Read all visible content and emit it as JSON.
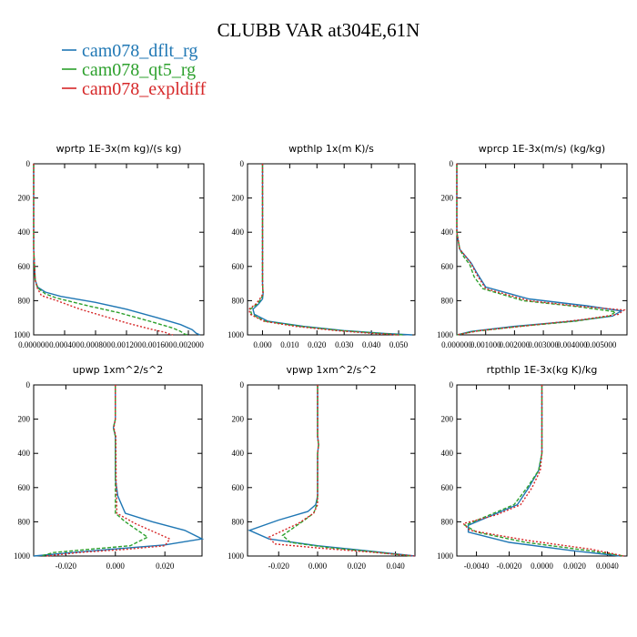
{
  "figure_title": "CLUBB VAR at304E,61N",
  "legend": [
    {
      "label": "cam078_dflt_rg",
      "color": "#1f77b4",
      "dash": "solid"
    },
    {
      "label": "cam078_qt5_rg",
      "color": "#2ca02c",
      "dash": "dashed"
    },
    {
      "label": "cam078_expldiff",
      "color": "#d62728",
      "dash": "dotted"
    }
  ],
  "chart_data": [
    {
      "type": "line",
      "title": "wprtp  1E-3x(m kg)/(s kg)",
      "xlim": [
        0,
        0.0022
      ],
      "xticks": [
        0,
        0.0004,
        0.0008,
        0.0012,
        0.0016,
        0.002
      ],
      "xtick_labels": [
        "0.000000",
        "0.000400",
        "0.000800",
        "0.001200",
        "0.001600",
        "0.002000"
      ],
      "ylim": [
        0,
        1000
      ],
      "yticks": [
        0,
        200,
        400,
        600,
        800,
        1000
      ],
      "ytick_labels": [
        "0",
        "200",
        "400",
        "600",
        "800",
        "1000"
      ],
      "series": [
        {
          "name": "cam078_dflt_rg",
          "x": [
            0,
            0,
            0,
            2e-05,
            5e-05,
            0.00015,
            0.00035,
            0.0008,
            0.0012,
            0.0016,
            0.0019,
            0.00205,
            0.0021,
            0.00215
          ],
          "y": [
            0,
            250,
            500,
            680,
            720,
            750,
            775,
            810,
            850,
            900,
            940,
            970,
            990,
            1000
          ]
        },
        {
          "name": "cam078_qt5_rg",
          "x": [
            0,
            0,
            0,
            2e-05,
            5e-05,
            0.00015,
            0.0003,
            0.0007,
            0.0011,
            0.0015,
            0.0018,
            0.0019,
            0.00195,
            0.002
          ],
          "y": [
            0,
            250,
            500,
            680,
            725,
            760,
            785,
            830,
            870,
            920,
            960,
            980,
            995,
            1000
          ]
        },
        {
          "name": "cam078_expldiff",
          "x": [
            0,
            0,
            0,
            2e-05,
            5e-05,
            0.0001,
            0.0003,
            0.0006,
            0.0009,
            0.0012,
            0.0015,
            0.0017,
            0.00175,
            0.0018
          ],
          "y": [
            0,
            250,
            500,
            680,
            730,
            770,
            800,
            850,
            890,
            930,
            965,
            985,
            995,
            1000
          ]
        }
      ]
    },
    {
      "type": "line",
      "title": "wpthlp  1x(m K)/s",
      "xlim": [
        -0.0055,
        0.056
      ],
      "xticks": [
        0,
        0.01,
        0.02,
        0.03,
        0.04,
        0.05
      ],
      "xtick_labels": [
        "0.000",
        "0.010",
        "0.020",
        "0.030",
        "0.040",
        "0.050"
      ],
      "ylim": [
        0,
        1000
      ],
      "yticks": [
        0,
        200,
        400,
        600,
        800,
        1000
      ],
      "ytick_labels": [
        "0",
        "200",
        "400",
        "600",
        "800",
        "1000"
      ],
      "series": [
        {
          "name": "cam078_dflt_rg",
          "x": [
            0,
            0,
            0,
            0.0002,
            0,
            -0.0015,
            -0.0035,
            -0.003,
            0.002,
            0.015,
            0.03,
            0.045,
            0.055
          ],
          "y": [
            0,
            400,
            700,
            760,
            790,
            820,
            850,
            880,
            920,
            950,
            975,
            992,
            1000
          ]
        },
        {
          "name": "cam078_qt5_rg",
          "x": [
            0,
            0,
            0,
            0.0002,
            -0.0005,
            -0.002,
            -0.0045,
            -0.004,
            0.001,
            0.014,
            0.029,
            0.044,
            0.052
          ],
          "y": [
            0,
            400,
            700,
            760,
            790,
            820,
            850,
            880,
            920,
            950,
            975,
            992,
            1000
          ]
        },
        {
          "name": "cam078_expldiff",
          "x": [
            0,
            0,
            0,
            0.0002,
            -0.001,
            -0.0025,
            -0.005,
            -0.0045,
            0.0005,
            0.012,
            0.027,
            0.041,
            0.05
          ],
          "y": [
            0,
            400,
            700,
            760,
            790,
            820,
            850,
            880,
            920,
            950,
            975,
            992,
            1000
          ]
        }
      ]
    },
    {
      "type": "line",
      "title": "wprcp  1E-3x(m/s) (kg/kg)",
      "xlim": [
        0,
        0.0059
      ],
      "xticks": [
        0,
        0.001,
        0.002,
        0.003,
        0.004,
        0.005
      ],
      "xtick_labels": [
        "0.000000",
        "0.001000",
        "0.002000",
        "0.003000",
        "0.004000",
        "0.005000"
      ],
      "ylim": [
        0,
        1000
      ],
      "yticks": [
        0,
        200,
        400,
        600,
        800,
        1000
      ],
      "ytick_labels": [
        "0",
        "200",
        "400",
        "600",
        "800",
        "1000"
      ],
      "series": [
        {
          "name": "cam078_dflt_rg",
          "x": [
            0,
            0,
            0.0001,
            0.0003,
            0.0005,
            0.0007,
            0.001,
            0.0025,
            0.0045,
            0.0057,
            0.0054,
            0.004,
            0.002,
            0.0005,
            0
          ],
          "y": [
            0,
            400,
            500,
            540,
            580,
            640,
            720,
            790,
            830,
            860,
            890,
            920,
            950,
            980,
            1000
          ]
        },
        {
          "name": "cam078_qt5_rg",
          "x": [
            0,
            0,
            0.0001,
            0.00025,
            0.00045,
            0.0006,
            0.0009,
            0.0023,
            0.0042,
            0.0055,
            0.0053,
            0.0041,
            0.0022,
            0.0006,
            0
          ],
          "y": [
            0,
            400,
            500,
            545,
            590,
            660,
            730,
            800,
            835,
            865,
            890,
            920,
            950,
            980,
            1000
          ]
        },
        {
          "name": "cam078_expldiff",
          "x": [
            0,
            0,
            0.0001,
            0.0003,
            0.0005,
            0.0007,
            0.001,
            0.0025,
            0.0044,
            0.0058,
            0.0056,
            0.0044,
            0.0025,
            0.0008,
            0
          ],
          "y": [
            0,
            400,
            500,
            540,
            585,
            650,
            730,
            800,
            835,
            855,
            880,
            910,
            945,
            975,
            1000
          ]
        }
      ]
    },
    {
      "type": "line",
      "title": "upwp  1xm^2/s^2",
      "xlim": [
        -0.033,
        0.035
      ],
      "xticks": [
        -0.02,
        0,
        0.02
      ],
      "xtick_labels": [
        "-0.020",
        "0.000",
        "0.020"
      ],
      "ylim": [
        0,
        1000
      ],
      "yticks": [
        0,
        200,
        400,
        600,
        800,
        1000
      ],
      "ytick_labels": [
        "0",
        "200",
        "400",
        "600",
        "800",
        "1000"
      ],
      "series": [
        {
          "name": "cam078_dflt_rg",
          "x": [
            0,
            0,
            -0.0008,
            0,
            0,
            0.001,
            0.004,
            0.015,
            0.028,
            0.035,
            0.02,
            -0.01,
            -0.033
          ],
          "y": [
            0,
            200,
            250,
            300,
            550,
            650,
            750,
            800,
            850,
            900,
            935,
            970,
            1000
          ]
        },
        {
          "name": "cam078_qt5_rg",
          "x": [
            0,
            0,
            -0.0008,
            0,
            0,
            0,
            0,
            0.004,
            0.013,
            0.006,
            -0.01,
            -0.025,
            -0.03
          ],
          "y": [
            0,
            200,
            250,
            300,
            550,
            650,
            750,
            800,
            890,
            940,
            960,
            980,
            1000
          ]
        },
        {
          "name": "cam078_expldiff",
          "x": [
            0,
            0,
            -0.0006,
            0.0002,
            0.0003,
            0.0005,
            0.0006,
            0.008,
            0.022,
            0.02,
            0.005,
            -0.015,
            -0.028
          ],
          "y": [
            0,
            200,
            250,
            300,
            550,
            650,
            750,
            810,
            900,
            940,
            960,
            980,
            1000
          ]
        }
      ]
    },
    {
      "type": "line",
      "title": "vpwp  1xm^2/s^2",
      "xlim": [
        -0.036,
        0.05
      ],
      "xticks": [
        -0.02,
        0,
        0.02,
        0.04
      ],
      "xtick_labels": [
        "-0.020",
        "0.000",
        "0.020",
        "0.040"
      ],
      "ylim": [
        0,
        1000
      ],
      "yticks": [
        0,
        200,
        400,
        600,
        800,
        1000
      ],
      "ytick_labels": [
        "0",
        "200",
        "400",
        "600",
        "800",
        "1000"
      ],
      "series": [
        {
          "name": "cam078_dflt_rg",
          "x": [
            0,
            0,
            0.0005,
            0,
            0,
            -0.001,
            -0.005,
            -0.02,
            -0.035,
            -0.025,
            0,
            0.03,
            0.05
          ],
          "y": [
            0,
            300,
            350,
            400,
            650,
            700,
            740,
            790,
            850,
            900,
            940,
            975,
            1000
          ]
        },
        {
          "name": "cam078_qt5_rg",
          "x": [
            0,
            0,
            0.0005,
            0,
            0,
            -0.0005,
            -0.002,
            -0.008,
            -0.018,
            -0.014,
            0.005,
            0.028,
            0.048
          ],
          "y": [
            0,
            300,
            350,
            400,
            650,
            700,
            750,
            800,
            880,
            920,
            950,
            975,
            1000
          ]
        },
        {
          "name": "cam078_expldiff",
          "x": [
            0,
            0,
            0.0005,
            0,
            0,
            0,
            -0.002,
            -0.01,
            -0.025,
            -0.022,
            0.002,
            0.03,
            0.05
          ],
          "y": [
            0,
            300,
            350,
            400,
            650,
            700,
            750,
            810,
            890,
            930,
            955,
            980,
            1000
          ]
        }
      ]
    },
    {
      "type": "line",
      "title": "rtpthlp  1E-3x(kg K)/kg",
      "xlim": [
        -0.0052,
        0.0052
      ],
      "xticks": [
        -0.004,
        -0.002,
        0,
        0.002,
        0.004
      ],
      "xtick_labels": [
        "-0.0040",
        "-0.0020",
        "0.0000",
        "0.0020",
        "0.0040"
      ],
      "ylim": [
        0,
        1000
      ],
      "yticks": [
        0,
        200,
        400,
        600,
        800,
        1000
      ],
      "ytick_labels": [
        "0",
        "200",
        "400",
        "600",
        "800",
        "1000"
      ],
      "series": [
        {
          "name": "cam078_dflt_rg",
          "x": [
            0,
            0,
            -0.0002,
            -0.0008,
            -0.0015,
            -0.003,
            -0.0045,
            -0.0045,
            -0.002,
            0.002,
            0.0048
          ],
          "y": [
            0,
            400,
            500,
            600,
            700,
            760,
            820,
            860,
            920,
            970,
            1000
          ]
        },
        {
          "name": "cam078_qt5_rg",
          "x": [
            0,
            0,
            -0.0002,
            -0.0009,
            -0.0017,
            -0.0032,
            -0.0047,
            -0.004,
            -0.001,
            0.003,
            0.005
          ],
          "y": [
            0,
            400,
            500,
            600,
            700,
            760,
            820,
            860,
            920,
            970,
            1000
          ]
        },
        {
          "name": "cam078_expldiff",
          "x": [
            0,
            0,
            -0.0001,
            -0.0006,
            -0.0013,
            -0.0028,
            -0.0048,
            -0.0044,
            -0.0008,
            0.003,
            0.005
          ],
          "y": [
            0,
            400,
            500,
            600,
            700,
            760,
            810,
            850,
            910,
            960,
            1000
          ]
        }
      ]
    }
  ]
}
